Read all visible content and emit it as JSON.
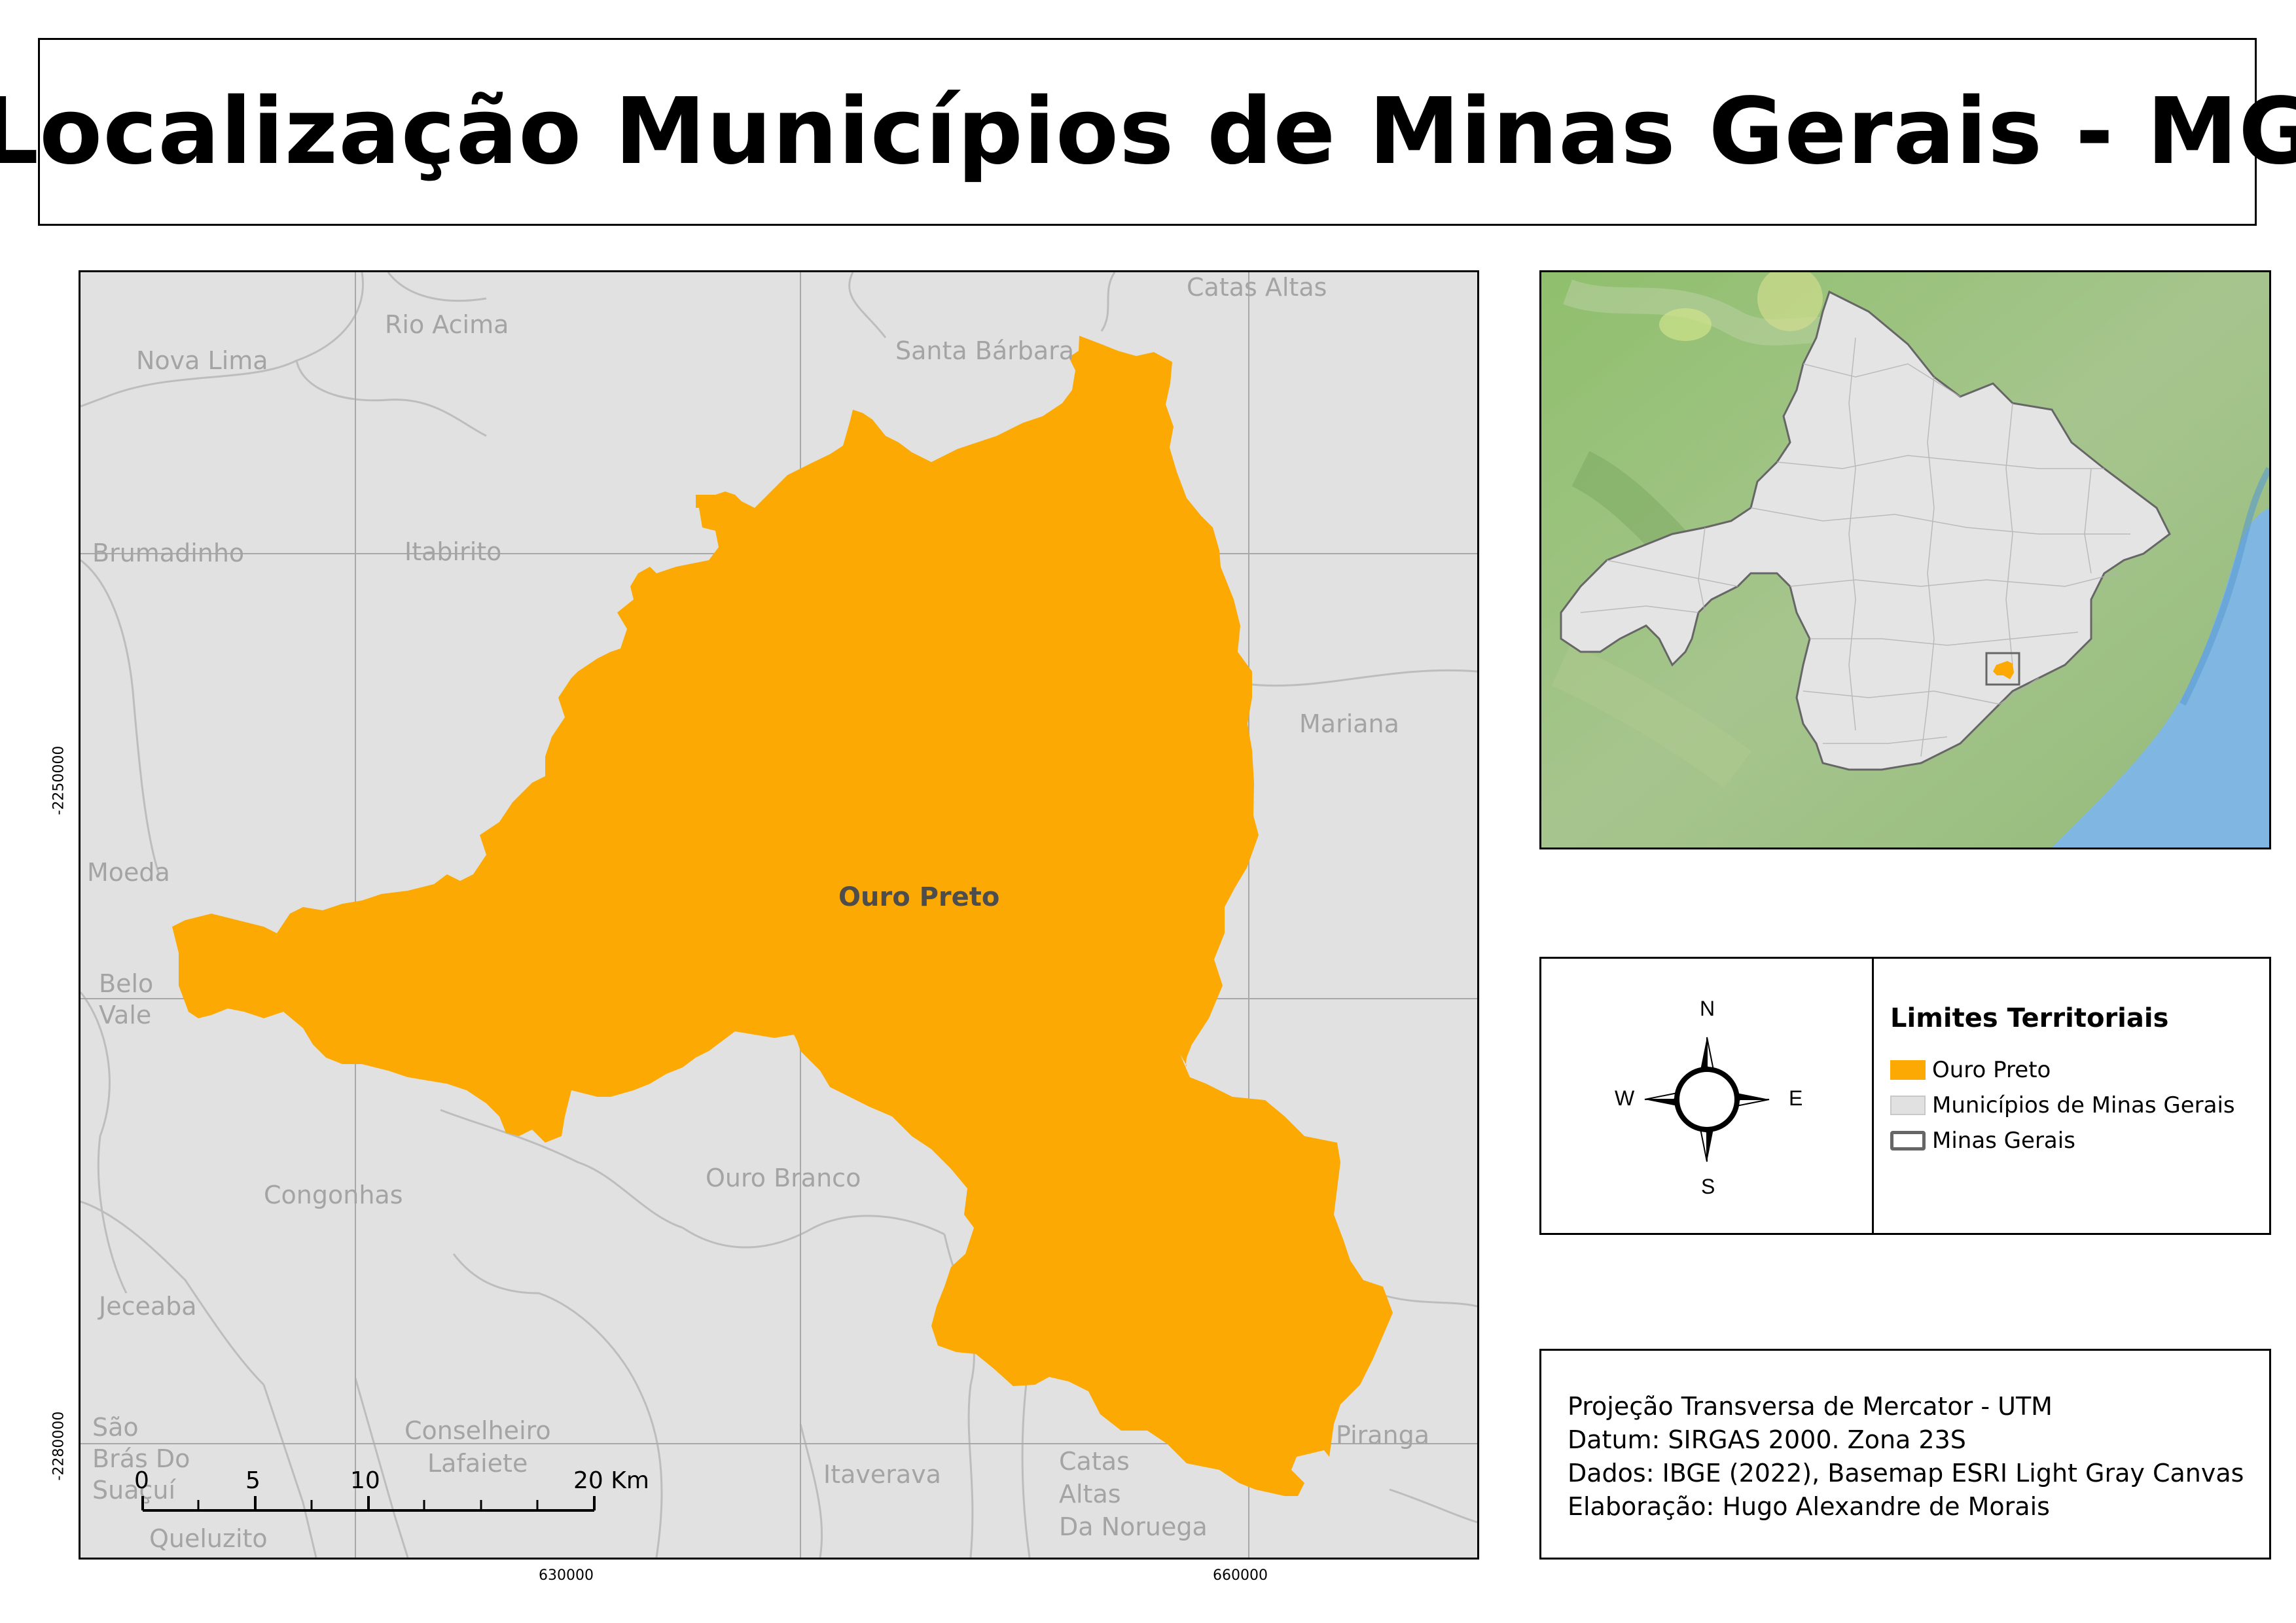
{
  "title": "Localização Municípios de Minas Gerais - MG",
  "main_map": {
    "highlight_label": "Ouro Preto",
    "highlight_color": "#fca903",
    "background_color": "#e1e1e1",
    "neighbor_labels": [
      "Catas Altas",
      "Rio Acima",
      "Nova Lima",
      "Santa Bárbara",
      "Brumadinho",
      "Itabirito",
      "Mariana",
      "Moeda",
      "Belo",
      "Vale",
      "Congonhas",
      "Ouro Branco",
      "Jeceaba",
      "São",
      "Brás Do",
      "Suaçuí",
      "Conselheiro",
      "Lafaiete",
      "Itaverava",
      "Catas",
      "Altas",
      "Da Noruega",
      "Piranga",
      "Queluzito"
    ],
    "grid_x_labels": [
      "630000",
      "660000"
    ],
    "grid_y_labels": [
      "-2250000",
      "-2280000"
    ],
    "scalebar": {
      "ticks": [
        "0",
        "5",
        "10",
        "20 Km"
      ]
    }
  },
  "inset": {
    "state_fill": "#e4e4e4",
    "sea_color": "#7fb7e2",
    "terrain_color": "#9cbf80"
  },
  "compass": {
    "north": "N",
    "south": "S",
    "east": "E",
    "west": "W"
  },
  "legend": {
    "title": "Limites Territoriais",
    "items": [
      {
        "label": "Ouro Preto",
        "color": "#fca903"
      },
      {
        "label": "Municípios de Minas Gerais",
        "color": "#e1e1e1"
      },
      {
        "label": "Minas Gerais",
        "color": "#666666"
      }
    ]
  },
  "info": {
    "lines": [
      "Projeção Transversa de Mercator - UTM",
      "Datum: SIRGAS 2000. Zona 23S",
      "Dados: IBGE (2022), Basemap ESRI Light Gray Canvas",
      "Elaboração: Hugo Alexandre de Morais"
    ]
  }
}
